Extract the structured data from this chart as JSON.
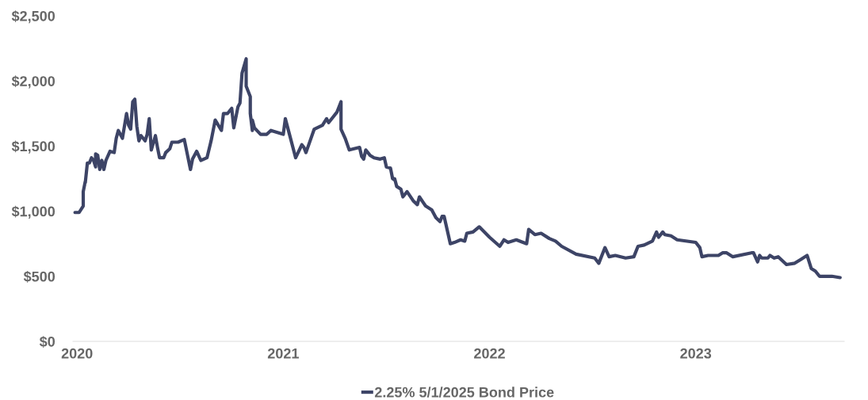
{
  "chart_data": {
    "type": "line",
    "x": [
      2019.99,
      2020.01,
      2020.03,
      2020.03,
      2020.04,
      2020.04,
      2020.05,
      2020.06,
      2020.07,
      2020.08,
      2020.09,
      2020.09,
      2020.1,
      2020.11,
      2020.12,
      2020.13,
      2020.14,
      2020.16,
      2020.18,
      2020.19,
      2020.2,
      2020.22,
      2020.24,
      2020.25,
      2020.26,
      2020.27,
      2020.28,
      2020.29,
      2020.3,
      2020.31,
      2020.33,
      2020.34,
      2020.35,
      2020.36,
      2020.38,
      2020.39,
      2020.4,
      2020.42,
      2020.43,
      2020.45,
      2020.46,
      2020.49,
      2020.52,
      2020.55,
      2020.56,
      2020.58,
      2020.6,
      2020.63,
      2020.65,
      2020.67,
      2020.7,
      2020.71,
      2020.73,
      2020.75,
      2020.76,
      2020.78,
      2020.79,
      2020.8,
      2020.82,
      2020.82,
      2020.84,
      2020.84,
      2020.85,
      2020.85,
      2020.86,
      2020.89,
      2020.92,
      2020.94,
      2021.0,
      2021.01,
      2021.03,
      2021.06,
      2021.09,
      2021.1,
      2021.11,
      2021.13,
      2021.15,
      2021.19,
      2021.21,
      2021.22,
      2021.24,
      2021.26,
      2021.28,
      2021.28,
      2021.3,
      2021.32,
      2021.37,
      2021.38,
      2021.39,
      2021.4,
      2021.42,
      2021.44,
      2021.47,
      2021.49,
      2021.5,
      2021.52,
      2021.53,
      2021.54,
      2021.54,
      2021.55,
      2021.57,
      2021.58,
      2021.6,
      2021.63,
      2021.65,
      2021.66,
      2021.69,
      2021.72,
      2021.74,
      2021.76,
      2021.77,
      2021.78,
      2021.81,
      2021.83,
      2021.86,
      2021.88,
      2021.89,
      2021.92,
      2021.95,
      2022.0,
      2022.05,
      2022.07,
      2022.09,
      2022.13,
      2022.18,
      2022.19,
      2022.22,
      2022.25,
      2022.29,
      2022.32,
      2022.35,
      2022.42,
      2022.51,
      2022.53,
      2022.56,
      2022.58,
      2022.61,
      2022.66,
      2022.7,
      2022.72,
      2022.75,
      2022.79,
      2022.81,
      2022.82,
      2022.84,
      2022.85,
      2022.88,
      2022.91,
      2023.0,
      2023.02,
      2023.03,
      2023.06,
      2023.11,
      2023.13,
      2023.15,
      2023.18,
      2023.27,
      2023.28,
      2023.3,
      2023.31,
      2023.32,
      2023.35,
      2023.36,
      2023.38,
      2023.4,
      2023.44,
      2023.48,
      2023.51,
      2023.54,
      2023.56,
      2023.58,
      2023.6,
      2023.66,
      2023.7
    ],
    "series": [
      {
        "name": "2.25% 5/1/2025 Bond Price",
        "color": "#3d4466",
        "values": [
          990,
          990,
          1040,
          1150,
          1230,
          1220,
          1370,
          1370,
          1410,
          1390,
          1340,
          1440,
          1430,
          1320,
          1390,
          1320,
          1390,
          1460,
          1450,
          1560,
          1620,
          1560,
          1750,
          1660,
          1630,
          1840,
          1860,
          1650,
          1540,
          1580,
          1540,
          1590,
          1710,
          1470,
          1580,
          1490,
          1410,
          1410,
          1450,
          1480,
          1530,
          1530,
          1550,
          1320,
          1400,
          1460,
          1390,
          1410,
          1540,
          1700,
          1620,
          1750,
          1750,
          1790,
          1640,
          1800,
          1830,
          2060,
          2170,
          1960,
          1880,
          1750,
          1620,
          1700,
          1640,
          1590,
          1590,
          1620,
          1590,
          1710,
          1590,
          1410,
          1510,
          1490,
          1450,
          1540,
          1630,
          1660,
          1710,
          1680,
          1720,
          1760,
          1840,
          1630,
          1560,
          1470,
          1490,
          1420,
          1400,
          1470,
          1430,
          1410,
          1400,
          1410,
          1340,
          1330,
          1250,
          1240,
          1250,
          1190,
          1170,
          1110,
          1150,
          1080,
          1050,
          1110,
          1040,
          1010,
          950,
          920,
          960,
          960,
          750,
          760,
          780,
          770,
          830,
          840,
          880,
          800,
          730,
          780,
          760,
          780,
          750,
          860,
          820,
          830,
          790,
          770,
          730,
          670,
          640,
          600,
          720,
          650,
          660,
          640,
          650,
          730,
          740,
          770,
          840,
          800,
          840,
          820,
          810,
          780,
          760,
          720,
          650,
          660,
          660,
          680,
          680,
          650,
          680,
          680,
          610,
          660,
          640,
          640,
          660,
          640,
          650,
          590,
          600,
          630,
          660,
          560,
          540,
          500,
          500,
          490
        ]
      }
    ],
    "xlim": [
      2019.98,
      2023.72
    ],
    "xticks": [
      2020,
      2021,
      2022,
      2023
    ],
    "ylim": [
      0,
      2500
    ],
    "yticks": [
      {
        "value": 0,
        "label": "$0"
      },
      {
        "value": 500,
        "label": "$500"
      },
      {
        "value": 1000,
        "label": "$1,000"
      },
      {
        "value": 1500,
        "label": "$1,500"
      },
      {
        "value": 2000,
        "label": "$2,000"
      },
      {
        "value": 2500,
        "label": "$2,500"
      }
    ],
    "grid": false,
    "legend": "bottom",
    "marker": "none",
    "line_style": "solid"
  }
}
